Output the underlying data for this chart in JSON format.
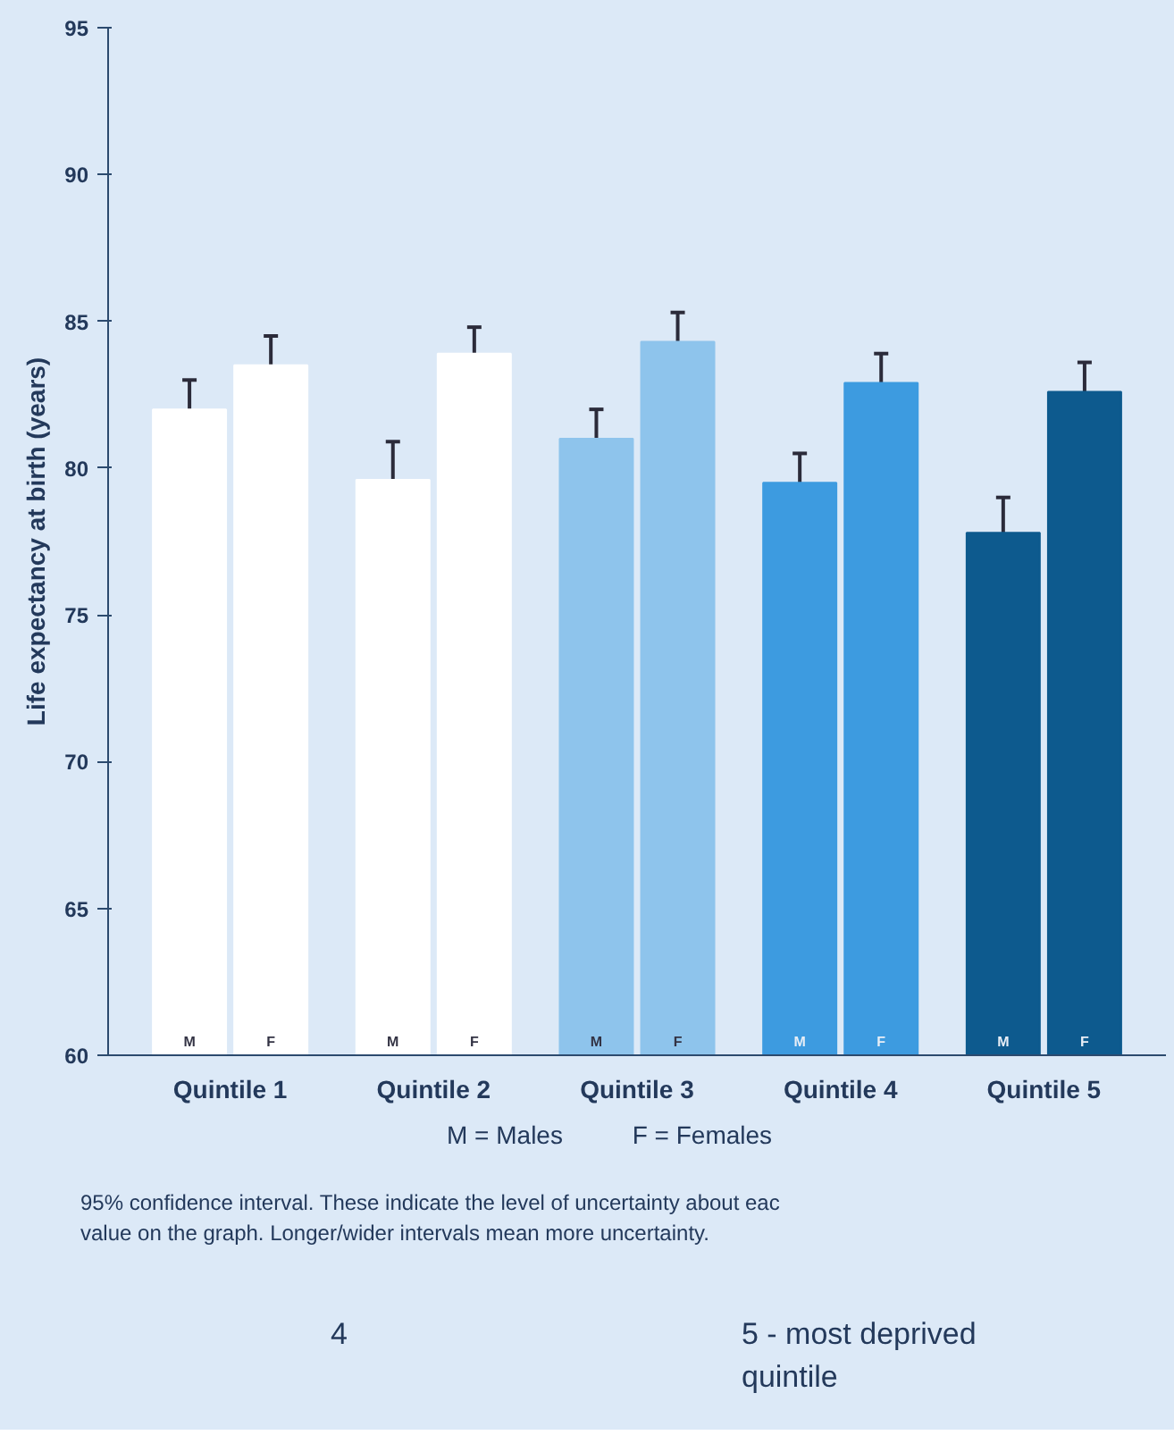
{
  "chart_data": {
    "type": "bar",
    "ylabel": "Life expectancy at birth (years)",
    "categories": [
      "Quintile 1",
      "Quintile 2",
      "Quintile 3",
      "Quintile 4",
      "Quintile 5"
    ],
    "series": [
      {
        "name": "M",
        "colors": [
          "#ffffff",
          "#ffffff",
          "#8ec4ec",
          "#3d9be0",
          "#0d5a8e"
        ],
        "values": [
          82.0,
          79.6,
          81.0,
          79.5,
          77.8
        ],
        "errors": [
          1.0,
          1.3,
          1.0,
          1.0,
          1.2
        ]
      },
      {
        "name": "F",
        "colors": [
          "#ffffff",
          "#ffffff",
          "#8ec4ec",
          "#3d9be0",
          "#0d5a8e"
        ],
        "values": [
          83.5,
          83.9,
          84.3,
          82.9,
          82.6
        ],
        "errors": [
          1.0,
          0.9,
          1.0,
          1.0,
          1.0
        ]
      }
    ],
    "ylim": [
      60,
      95
    ],
    "yticks": [
      60,
      65,
      70,
      75,
      80,
      85,
      90,
      95
    ],
    "grid": false,
    "annotations": [
      "M = Males          F = Females",
      "95% confidence interval. These indicate the level of uncertainty about eac",
      "value on the graph. Longer/wider intervals mean more uncertainty.",
      "4",
      "5 - most deprived quintile"
    ]
  }
}
